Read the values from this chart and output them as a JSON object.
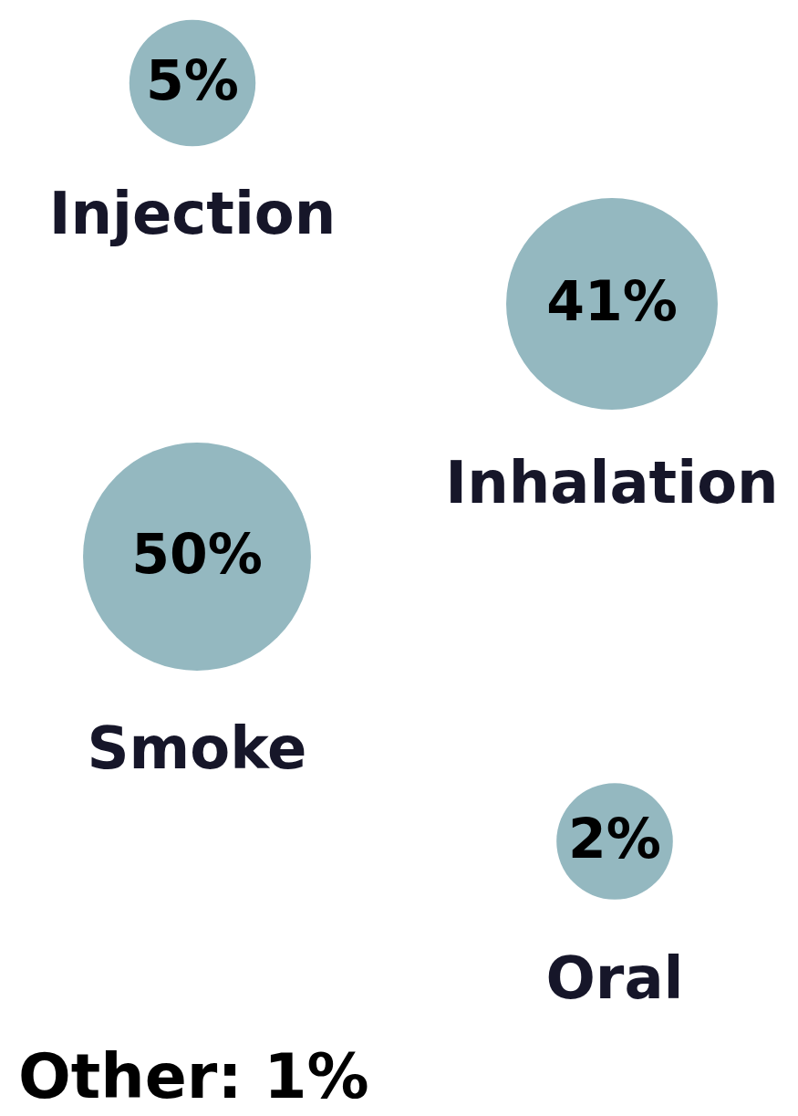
{
  "chart_data": {
    "type": "other",
    "categories": [
      "Injection",
      "Inhalation",
      "Smoke",
      "Oral"
    ],
    "values": [
      5,
      41,
      50,
      2
    ],
    "value_labels": [
      "5%",
      "41%",
      "50%",
      "2%"
    ],
    "color": "#94b8c0",
    "annotations": [
      "Other: 1%"
    ]
  }
}
